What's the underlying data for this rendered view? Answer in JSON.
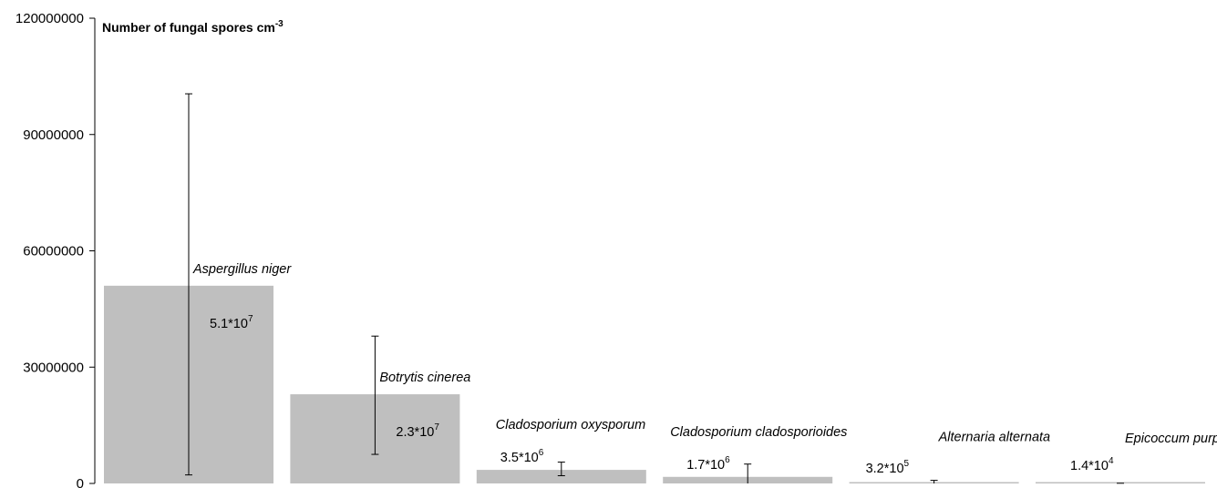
{
  "chart_data": {
    "type": "bar",
    "title": "",
    "xlabel": "",
    "ylabel": "Number of fungal spores cm",
    "ylabel_exponent": "-3",
    "ylim": [
      0,
      120000000
    ],
    "yticks": [
      0,
      30000000,
      60000000,
      90000000,
      120000000
    ],
    "ytick_labels": [
      "0",
      "30000000",
      "60000000",
      "90000000",
      "120000000"
    ],
    "grid": false,
    "legend": "none",
    "bar_color": "#bfbfbf",
    "categories": [
      "Aspergillus niger",
      "Botrytis cinerea",
      "Cladosporium oxysporum",
      "Cladosporium cladosporioides",
      "Alternaria alternata",
      "Epicoccum purpurascens"
    ],
    "values": [
      51000000,
      23000000,
      3500000,
      1700000,
      320000,
      14000
    ],
    "error_bars": [
      [
        2200000,
        100500000
      ],
      [
        7500000,
        38000000
      ],
      [
        2000000,
        5500000
      ],
      [
        0,
        5000000
      ],
      [
        0,
        800000
      ],
      [
        0,
        50000
      ]
    ],
    "value_labels": [
      {
        "mantissa": "5.1*10",
        "exponent": "7"
      },
      {
        "mantissa": "2.3*10",
        "exponent": "7"
      },
      {
        "mantissa": "3.5*10",
        "exponent": "6"
      },
      {
        "mantissa": "1.7*10",
        "exponent": "6"
      },
      {
        "mantissa": "3.2*10",
        "exponent": "5"
      },
      {
        "mantissa": "1.4*10",
        "exponent": "4"
      }
    ]
  }
}
